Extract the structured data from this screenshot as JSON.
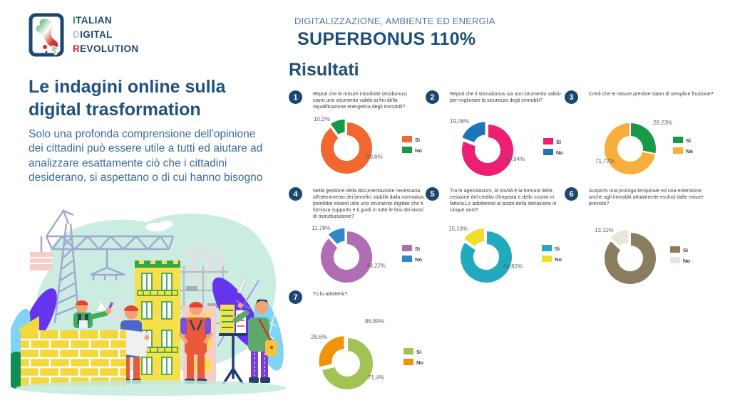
{
  "logo": {
    "lines": [
      {
        "first": "I",
        "rest": "TALIAN"
      },
      {
        "first": "D",
        "rest": "IGITAL"
      },
      {
        "first": "R",
        "rest": "EVOLUTION"
      }
    ]
  },
  "left": {
    "heading": "Le indagini online sulla digital trasformation",
    "paragraph": "Solo una profonda comprensione dell'opinione dei cittadini può essere utile a tutti ed aiutare ad analizzare esattamente ciò che i cittadini desiderano, si aspettano o di cui hanno bisogno"
  },
  "header": {
    "kicker": "DIGITALIZZAZIONE, AMBIENTE ED ENERGIA",
    "title": "SUPERBONUS 110%",
    "subtitle": "Risultati"
  },
  "colors": {
    "title_navy": "#1F4E79",
    "badge_navy": "#1E4770",
    "kicker_blue": "#4E7CA0",
    "paragraph_blue": "#3A6B9E",
    "percent_label_gray": "#5F6368"
  },
  "stray_label": "86,89%",
  "chart_data": [
    {
      "type": "pie",
      "number": "1",
      "question": "Reputi che le misure introdotte (ecobonus) siano uno strumento valido ai fini della riqualificazione energetica degli immobili?",
      "series": [
        {
          "name": "Sì",
          "value": 89.8,
          "label": "89,8%",
          "color": "#F2662F"
        },
        {
          "name": "No",
          "value": 10.2,
          "label": "10,2%",
          "color": "#169A47"
        }
      ],
      "legend_position": "right"
    },
    {
      "type": "pie",
      "number": "2",
      "question": "Reputi che il sismabonus sia uno strumento valido per migliorare la sicurezza degli immobili?",
      "series": [
        {
          "name": "Sì",
          "value": 80.94,
          "label": "80,94%",
          "color": "#EC1F73"
        },
        {
          "name": "No",
          "value": 19.06,
          "label": "19,06%",
          "color": "#1C75BB"
        }
      ],
      "legend_position": "right"
    },
    {
      "type": "pie",
      "number": "3",
      "question": "Credi che le misure previste siano di semplice fruizione?",
      "series": [
        {
          "name": "Sì",
          "value": 28.23,
          "label": "28,23%",
          "color": "#169A47"
        },
        {
          "name": "No",
          "value": 71.77,
          "label": "71,77%",
          "color": "#F7AE3D"
        }
      ],
      "legend_position": "right"
    },
    {
      "type": "pie",
      "number": "4",
      "question": "Nella gestione della documentazione necessaria all'ottenimento dei benefici stabiliti dalla normativa, potrebbe esserti utile uno strumento digitale che ti fornisca supporto e ti guidi in tutte le fasi dei lavori di ristrutturazione?",
      "series": [
        {
          "name": "Sì",
          "value": 88.22,
          "label": "88,22%",
          "color": "#B16DB3"
        },
        {
          "name": "No",
          "value": 11.78,
          "label": "11,78%",
          "color": "#2F88CB"
        }
      ],
      "legend_position": "right"
    },
    {
      "type": "pie",
      "number": "5",
      "question": "Tra le agevolazioni, la novità  è la formula della cessione del credito d'imposta e dello sconto in fattura.Lo adotteresti al posto della detrazione in cinque anni?",
      "series": [
        {
          "name": "Sì",
          "value": 84.82,
          "label": "84,82%",
          "color": "#23A9BE"
        },
        {
          "name": "No",
          "value": 15.18,
          "label": "15,18%",
          "color": "#F2DC2B"
        }
      ],
      "legend_position": "right"
    },
    {
      "type": "pie",
      "number": "6",
      "question": "Auspichi una proroga temporale ed una estensione anche agli immobili attualmente esclusi dalle misure previste?",
      "series": [
        {
          "name": "Sì",
          "value": 86.89,
          "label": "86,89%",
          "color": "#8B7D60"
        },
        {
          "name": "No",
          "value": 13.11,
          "label": "13,11%",
          "color": "#E9E5D9"
        }
      ],
      "legend_position": "right",
      "note": "Sì label displayed displaced near chart 7"
    },
    {
      "type": "pie",
      "number": "7",
      "question": "Tu lo adotterai?",
      "series": [
        {
          "name": "Sì",
          "value": 71.4,
          "label": "71,4%",
          "color": "#A1C353"
        },
        {
          "name": "No",
          "value": 28.6,
          "label": "28,6%",
          "color": "#F0930B"
        }
      ],
      "legend_position": "right"
    }
  ]
}
